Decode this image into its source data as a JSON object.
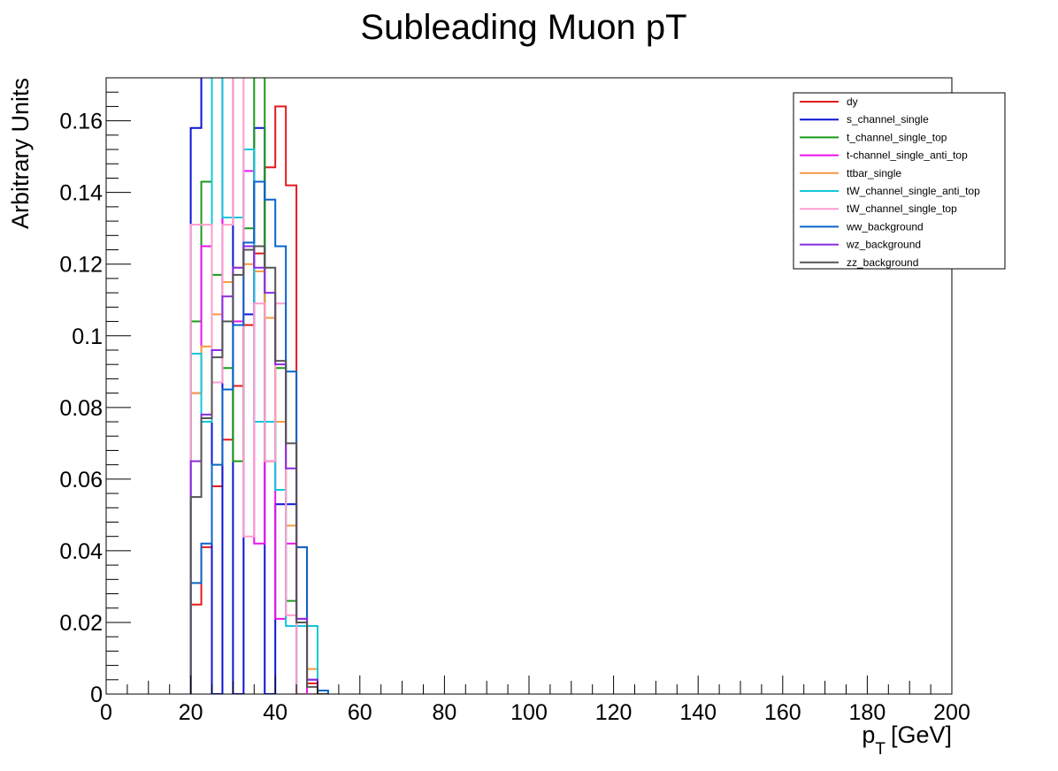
{
  "chart_data": {
    "type": "line",
    "title": "Subleading Muon pT",
    "xlabel_main": "p",
    "xlabel_sub": "T",
    "xlabel_unit": "[GeV]",
    "ylabel": "Arbitrary Units",
    "xlim": [
      0,
      200
    ],
    "ylim": [
      0,
      0.172
    ],
    "grid": false,
    "legend_position": "top-right",
    "x_ticks": [
      0,
      20,
      40,
      60,
      80,
      100,
      120,
      140,
      160,
      180,
      200
    ],
    "x_tick_labels": [
      "0",
      "20",
      "40",
      "60",
      "80",
      "100",
      "120",
      "140",
      "160",
      "180",
      "200"
    ],
    "y_ticks": [
      0,
      0.02,
      0.04,
      0.06,
      0.08,
      0.1,
      0.12,
      0.14,
      0.16
    ],
    "y_tick_labels": [
      "0",
      "0.02",
      "0.04",
      "0.06",
      "0.08",
      "0.1",
      "0.12",
      "0.14",
      "0.16"
    ],
    "bin_edges": [
      20,
      22.5,
      25,
      27.5,
      30,
      32.5,
      35,
      37.5,
      40,
      42.5,
      45,
      47.5,
      50,
      52.5
    ],
    "series": [
      {
        "name": "dy",
        "color": "#e31a1c",
        "values": [
          0.025,
          0.041,
          0.058,
          0.071,
          0.086,
          0.103,
          0.123,
          0.147,
          0.164,
          0.142,
          0.041,
          0.003,
          0.0
        ]
      },
      {
        "name": "s_channel_single",
        "color": "#0a14d6",
        "values": [
          0.158,
          0.175,
          0.0,
          0.175,
          0.0,
          0.106,
          0.158,
          0.0,
          0.053,
          0.053,
          0.0,
          0.0,
          0.0
        ]
      },
      {
        "name": "t_channel_single_top",
        "color": "#1a9a1a",
        "values": [
          0.104,
          0.143,
          0.117,
          0.091,
          0.065,
          0.13,
          0.175,
          0.065,
          0.091,
          0.026,
          0.0,
          0.0,
          0.0
        ]
      },
      {
        "name": "t-channel_single_anti_top",
        "color": "#ee11ee",
        "values": [
          0.084,
          0.125,
          0.175,
          0.104,
          0.104,
          0.146,
          0.042,
          0.065,
          0.021,
          0.042,
          0.021,
          0.0,
          0.0
        ]
      },
      {
        "name": "ttbar_single",
        "color": "#f59a42",
        "values": [
          0.084,
          0.097,
          0.106,
          0.115,
          0.119,
          0.12,
          0.118,
          0.105,
          0.076,
          0.047,
          0.02,
          0.007,
          0.0
        ]
      },
      {
        "name": "tW_channel_single_anti_top",
        "color": "#11c8d8",
        "values": [
          0.095,
          0.076,
          0.175,
          0.133,
          0.133,
          0.152,
          0.076,
          0.076,
          0.057,
          0.019,
          0.019,
          0.019,
          0.0
        ]
      },
      {
        "name": "tW_channel_single_top",
        "color": "#ff9ccf",
        "values": [
          0.131,
          0.131,
          0.087,
          0.131,
          0.175,
          0.044,
          0.109,
          0.065,
          0.109,
          0.022,
          0.0,
          0.0,
          0.0
        ]
      },
      {
        "name": "ww_background",
        "color": "#0a64c8",
        "values": [
          0.031,
          0.042,
          0.064,
          0.085,
          0.103,
          0.126,
          0.143,
          0.138,
          0.125,
          0.09,
          0.041,
          0.004,
          0.001
        ]
      },
      {
        "name": "wz_background",
        "color": "#8a2be2",
        "values": [
          0.065,
          0.078,
          0.096,
          0.111,
          0.119,
          0.125,
          0.119,
          0.112,
          0.092,
          0.063,
          0.021,
          0.004,
          0.0
        ]
      },
      {
        "name": "zz_background",
        "color": "#555555",
        "values": [
          0.055,
          0.077,
          0.094,
          0.104,
          0.117,
          0.124,
          0.125,
          0.119,
          0.093,
          0.07,
          0.02,
          0.002,
          0.0
        ]
      }
    ]
  }
}
